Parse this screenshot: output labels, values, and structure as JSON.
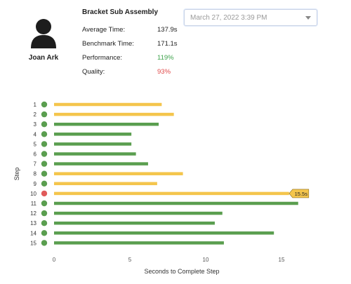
{
  "operator": {
    "name": "Joan Ark"
  },
  "summary": {
    "title": "Bracket Sub Assembly",
    "average_time_label": "Average Time:",
    "average_time_value": "137.9s",
    "benchmark_time_label": "Benchmark Time:",
    "benchmark_time_value": "171.1s",
    "performance_label": "Performance:",
    "performance_value": "119%",
    "quality_label": "Quality:",
    "quality_value": "93%"
  },
  "date_picker": {
    "selected": "March 27, 2022 3:39 PM"
  },
  "colors": {
    "good": "#5a9e4f",
    "slow": "#f4c54c",
    "fail": "#e05a5a",
    "good_text": "#3fa34d",
    "bad_text": "#e04b4b"
  },
  "chart_data": {
    "type": "bar",
    "orientation": "horizontal",
    "xlabel": "Seconds to Complete Step",
    "ylabel": "Step",
    "xlim": [
      0,
      17.5
    ],
    "xticks": [
      0,
      5,
      10,
      15
    ],
    "categories": [
      "1",
      "2",
      "3",
      "4",
      "5",
      "6",
      "7",
      "8",
      "9",
      "10",
      "11",
      "12",
      "13",
      "14",
      "15"
    ],
    "values": [
      7.1,
      7.9,
      6.9,
      5.1,
      5.1,
      5.4,
      6.2,
      8.5,
      6.8,
      15.5,
      16.1,
      11.1,
      10.6,
      14.5,
      11.2
    ],
    "bar_status": [
      "slow",
      "slow",
      "good",
      "good",
      "good",
      "good",
      "good",
      "slow",
      "slow",
      "slow",
      "good",
      "good",
      "good",
      "good",
      "good"
    ],
    "step_status": [
      "good",
      "good",
      "good",
      "good",
      "good",
      "good",
      "good",
      "good",
      "good",
      "fail",
      "good",
      "good",
      "good",
      "good",
      "good"
    ],
    "annotation": {
      "step": "10",
      "label": "15.5s"
    }
  }
}
